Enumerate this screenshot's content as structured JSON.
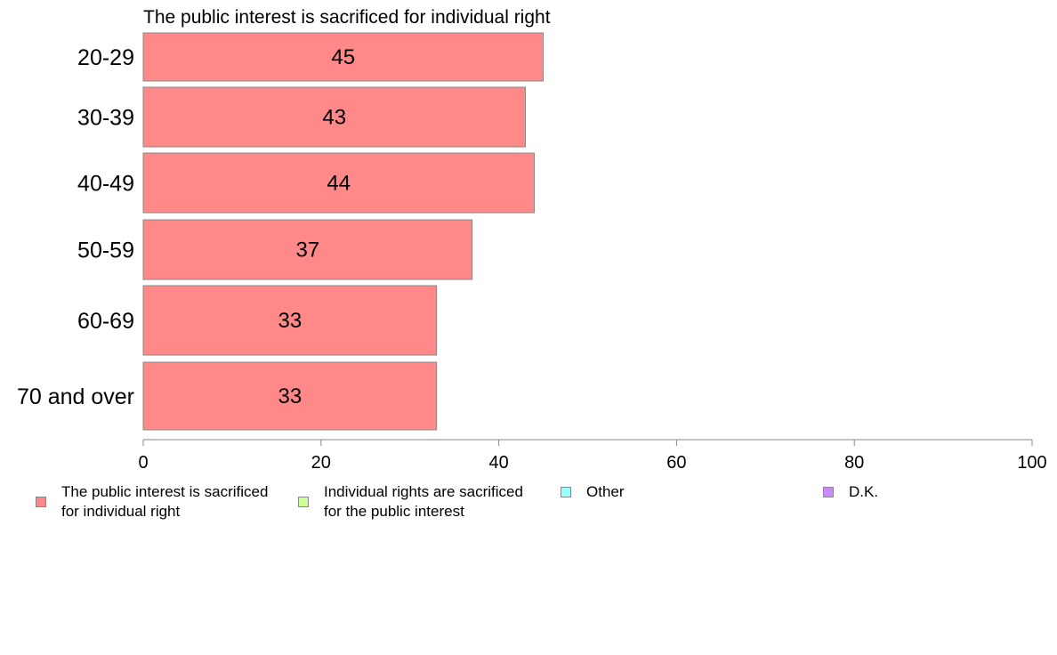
{
  "chart_data": {
    "type": "bar",
    "orientation": "horizontal",
    "title": "The public interest is sacrificed for individual right",
    "categories": [
      "20-29",
      "30-39",
      "40-49",
      "50-59",
      "60-69",
      "70 and over"
    ],
    "series": [
      {
        "name": "The public interest is sacrificed for individual right",
        "color": "#ff8888",
        "values": [
          45,
          43,
          44,
          37,
          33,
          33
        ]
      }
    ],
    "xlim": [
      0,
      100
    ],
    "xticks": [
      0,
      20,
      40,
      60,
      80,
      100
    ],
    "grid": false,
    "legend_position": "bottom"
  },
  "legend": [
    {
      "label": "The public interest is sacrificed\nfor individual right",
      "color": "#ff8888"
    },
    {
      "label": "Individual rights are sacrificed\nfor the public interest",
      "color": "#ccff99"
    },
    {
      "label": "Other",
      "color": "#99ffff"
    },
    {
      "label": "D.K.",
      "color": "#cc88ff"
    }
  ]
}
